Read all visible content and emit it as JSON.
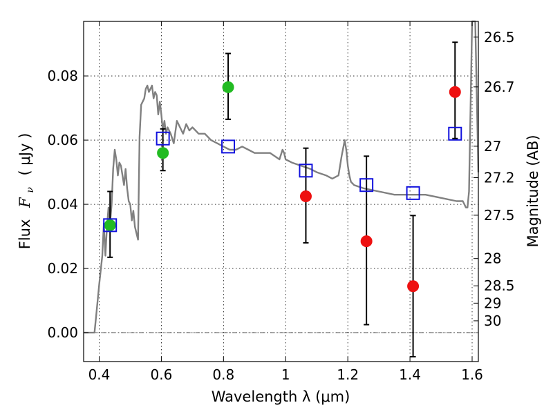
{
  "chart_data": {
    "type": "scatter",
    "title": "",
    "xlabel": "Wavelength  λ (μm)",
    "ylabel_prefix": "Flux",
    "ylabel_symbol": "F",
    "ylabel_subscript": "ν",
    "ylabel_unit": "( μJy )",
    "ylabel_right": "Magnitude (AB)",
    "xlim": [
      0.35,
      1.62
    ],
    "ylim": [
      -0.009,
      0.097
    ],
    "x_ticks": [
      0.4,
      0.6,
      0.8,
      1.0,
      1.2,
      1.4,
      1.6
    ],
    "x_tick_labels": [
      "0.4",
      "0.6",
      "0.8",
      "1",
      "1.2",
      "1.4",
      "1.6"
    ],
    "y_ticks": [
      0.0,
      0.02,
      0.04,
      0.06,
      0.08
    ],
    "y_tick_labels": [
      "0.00",
      "0.02",
      "0.04",
      "0.06",
      "0.08"
    ],
    "right_ticks": [
      {
        "label": "26.5",
        "flux": 0.0921
      },
      {
        "label": "26.7",
        "flux": 0.0766
      },
      {
        "label": "27",
        "flux": 0.0581
      },
      {
        "label": "27.2",
        "flux": 0.0483
      },
      {
        "label": "27.5",
        "flux": 0.0366
      },
      {
        "label": "28",
        "flux": 0.0231
      },
      {
        "label": "28.5",
        "flux": 0.0146
      },
      {
        "label": "29",
        "flux": 0.0092
      },
      {
        "label": "30",
        "flux": 0.0037
      }
    ],
    "grid": true,
    "horizontal_reference_line": 0.0,
    "colors": {
      "spectrum": "#808080",
      "green": "#22bb22",
      "red": "#ee1111",
      "model_box": "#1111dd",
      "errorbar": "#000000"
    },
    "spectrum": {
      "name": "",
      "x": [
        0.35,
        0.37,
        0.385,
        0.39,
        0.4,
        0.41,
        0.415,
        0.42,
        0.425,
        0.43,
        0.435,
        0.44,
        0.445,
        0.45,
        0.455,
        0.46,
        0.465,
        0.47,
        0.475,
        0.48,
        0.485,
        0.49,
        0.495,
        0.5,
        0.505,
        0.51,
        0.515,
        0.52,
        0.525,
        0.53,
        0.535,
        0.54,
        0.545,
        0.55,
        0.555,
        0.56,
        0.565,
        0.57,
        0.575,
        0.58,
        0.585,
        0.59,
        0.595,
        0.6,
        0.605,
        0.61,
        0.615,
        0.62,
        0.63,
        0.64,
        0.65,
        0.66,
        0.67,
        0.68,
        0.69,
        0.7,
        0.72,
        0.74,
        0.76,
        0.78,
        0.8,
        0.82,
        0.84,
        0.86,
        0.88,
        0.9,
        0.95,
        0.98,
        0.99,
        0.995,
        1.0,
        1.02,
        1.05,
        1.08,
        1.1,
        1.13,
        1.15,
        1.17,
        1.18,
        1.19,
        1.195,
        1.2,
        1.205,
        1.21,
        1.22,
        1.25,
        1.3,
        1.35,
        1.4,
        1.45,
        1.5,
        1.55,
        1.57,
        1.575,
        1.58,
        1.585,
        1.59,
        1.6,
        1.61,
        1.62
      ],
      "y": [
        0.0,
        0.0,
        0.0,
        0.005,
        0.015,
        0.024,
        0.034,
        0.024,
        0.033,
        0.039,
        0.034,
        0.04,
        0.051,
        0.057,
        0.054,
        0.049,
        0.053,
        0.052,
        0.049,
        0.046,
        0.051,
        0.045,
        0.041,
        0.04,
        0.035,
        0.038,
        0.033,
        0.031,
        0.029,
        0.061,
        0.071,
        0.072,
        0.073,
        0.076,
        0.077,
        0.075,
        0.076,
        0.077,
        0.073,
        0.075,
        0.074,
        0.068,
        0.072,
        0.068,
        0.063,
        0.066,
        0.062,
        0.064,
        0.062,
        0.059,
        0.066,
        0.064,
        0.062,
        0.065,
        0.063,
        0.064,
        0.062,
        0.062,
        0.06,
        0.059,
        0.058,
        0.057,
        0.057,
        0.058,
        0.057,
        0.056,
        0.056,
        0.054,
        0.057,
        0.056,
        0.054,
        0.053,
        0.052,
        0.051,
        0.05,
        0.049,
        0.048,
        0.049,
        0.055,
        0.06,
        0.057,
        0.052,
        0.049,
        0.047,
        0.046,
        0.045,
        0.044,
        0.043,
        0.043,
        0.043,
        0.042,
        0.041,
        0.041,
        0.04,
        0.039,
        0.039,
        0.044,
        0.097,
        0.097,
        0.05
      ]
    },
    "photometry": [
      {
        "x": 0.435,
        "y": 0.0335,
        "err_low": 0.0235,
        "err_high": 0.044,
        "color": "green"
      },
      {
        "x": 0.605,
        "y": 0.056,
        "err_low": 0.0505,
        "err_high": 0.0635,
        "color": "green"
      },
      {
        "x": 0.815,
        "y": 0.0765,
        "err_low": 0.0665,
        "err_high": 0.087,
        "color": "green"
      },
      {
        "x": 1.065,
        "y": 0.0425,
        "err_low": 0.028,
        "err_high": 0.0575,
        "color": "red"
      },
      {
        "x": 1.26,
        "y": 0.0285,
        "err_low": 0.0025,
        "err_high": 0.055,
        "color": "red"
      },
      {
        "x": 1.41,
        "y": 0.0145,
        "err_low": -0.0075,
        "err_high": 0.0365,
        "color": "red"
      },
      {
        "x": 1.545,
        "y": 0.075,
        "err_low": 0.0605,
        "err_high": 0.0905,
        "color": "red"
      }
    ],
    "model_photometry": [
      {
        "x": 0.435,
        "y": 0.0335
      },
      {
        "x": 0.605,
        "y": 0.0605
      },
      {
        "x": 0.815,
        "y": 0.058
      },
      {
        "x": 1.065,
        "y": 0.0505
      },
      {
        "x": 1.26,
        "y": 0.046
      },
      {
        "x": 1.41,
        "y": 0.0435
      },
      {
        "x": 1.545,
        "y": 0.062
      }
    ]
  }
}
